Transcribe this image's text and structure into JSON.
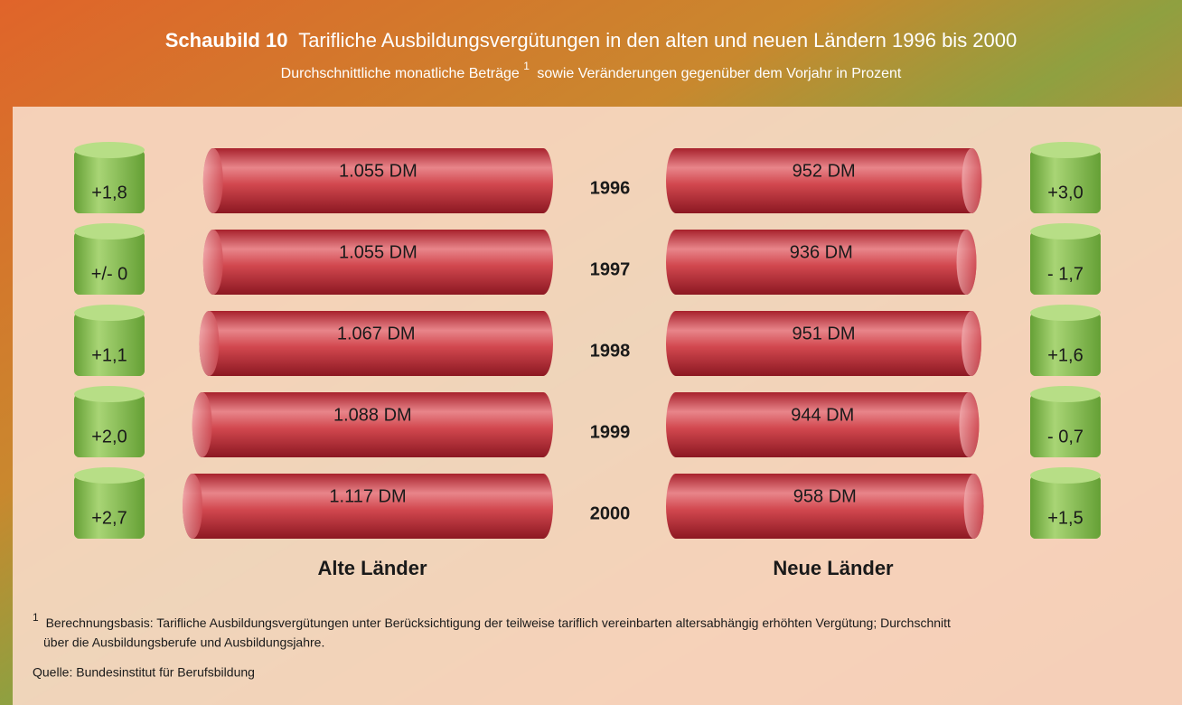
{
  "chart_data": {
    "type": "cylinder-bar",
    "title_label": "Schaubild 10",
    "title": "Tarifliche Ausbildungsvergütungen in den alten und neuen Ländern 1996 bis 2000",
    "subtitle": "Durchschnittliche monatliche Beträge",
    "subtitle_mark": "1",
    "subtitle_rest": "sowie Veränderungen gegenüber dem Vorjahr in Prozent",
    "categories": [
      "1996",
      "1997",
      "1998",
      "1999",
      "2000"
    ],
    "series": [
      {
        "name": "Alte Länder",
        "color": "#c8343e",
        "change_color": "#7cb84a",
        "values": [
          1055,
          1055,
          1067,
          1088,
          1117
        ],
        "value_labels": [
          "1.055 DM",
          "1.055 DM",
          "1.067 DM",
          "1.088 DM",
          "1.117 DM"
        ],
        "changes": [
          1.8,
          0,
          1.1,
          2.0,
          2.7
        ],
        "change_labels": [
          "+1,8",
          "+/- 0",
          "+1,1",
          "+2,0",
          "+2,7"
        ]
      },
      {
        "name": "Neue Länder",
        "color": "#c8343e",
        "change_color": "#7cb84a",
        "values": [
          952,
          936,
          951,
          944,
          958
        ],
        "value_labels": [
          "952 DM",
          "936 DM",
          "951 DM",
          "944 DM",
          "958 DM"
        ],
        "changes": [
          3.0,
          -1.7,
          1.6,
          -0.7,
          1.5
        ],
        "change_labels": [
          "+3,0",
          "- 1,7",
          "+1,6",
          "- 0,7",
          "+1,5"
        ]
      }
    ],
    "footnote_mark": "1",
    "footnote_lines": [
      "Berechnungsbasis: Tarifliche Ausbildungsvergütungen unter Berücksichtigung der teilweise tariflich vereinbarten altersabhängig erhöhten Vergütung; Durchschnitt",
      "über die Ausbildungsberufe und Ausbildungsjahre."
    ],
    "source": "Quelle: Bundesinstitut für Berufsbildung"
  }
}
